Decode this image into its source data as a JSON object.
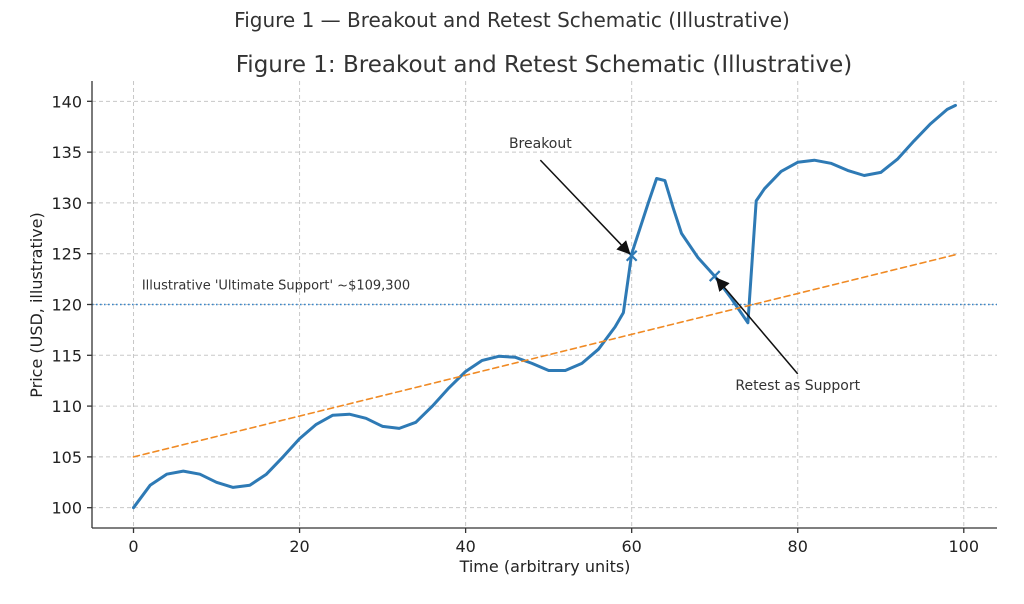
{
  "figure_title": "Figure 1 — Breakout and Retest Schematic (Illustrative)",
  "chart_data": {
    "type": "line",
    "title": "Figure 1: Breakout and Retest Schematic (Illustrative)",
    "xlabel": "Time (arbitrary units)",
    "ylabel": "Price (USD, illustrative)",
    "xlim": [
      -5,
      104
    ],
    "ylim": [
      98,
      142
    ],
    "xticks": [
      0,
      20,
      40,
      60,
      80,
      100
    ],
    "yticks": [
      100,
      105,
      110,
      115,
      120,
      125,
      130,
      135,
      140
    ],
    "grid": true,
    "colors": {
      "price": "#2e7ab5",
      "trend": "#f08a24",
      "support": "#3a86c8"
    },
    "series": [
      {
        "style": "solid",
        "x": [
          0,
          2,
          4,
          6,
          8,
          10,
          12,
          14,
          16,
          18,
          20,
          22,
          24,
          26,
          28,
          30,
          32,
          34,
          36,
          38,
          40,
          42,
          44,
          46,
          48,
          50,
          52,
          54,
          56,
          58,
          59,
          60,
          61,
          62,
          63,
          64,
          65,
          66,
          68,
          70,
          72,
          74,
          75,
          76,
          78,
          80,
          82,
          84,
          86,
          88,
          90,
          92,
          94,
          96,
          98,
          99
        ],
        "y": [
          100.0,
          102.2,
          103.3,
          103.6,
          103.3,
          102.5,
          102.0,
          102.2,
          103.3,
          105.0,
          106.8,
          108.2,
          109.1,
          109.2,
          108.8,
          108.0,
          107.8,
          108.4,
          110.0,
          111.8,
          113.4,
          114.5,
          114.9,
          114.8,
          114.2,
          113.5,
          113.5,
          114.2,
          115.6,
          117.8,
          119.2,
          125.0,
          127.5,
          130.0,
          132.4,
          132.2,
          129.5,
          127.0,
          124.6,
          122.8,
          120.6,
          118.2,
          130.2,
          131.4,
          133.1,
          134.0,
          134.2,
          133.9,
          133.2,
          132.7,
          133.0,
          134.3,
          136.1,
          137.8,
          139.2,
          139.6
        ]
      },
      {
        "style": "dashed",
        "x": [
          0,
          99
        ],
        "y": [
          105.0,
          124.9
        ]
      }
    ],
    "support_level": 120,
    "support_label": "Illustrative 'Ultimate Support' ~$109,300",
    "markers": [
      {
        "x": 60,
        "y": 124.8,
        "symbol": "x"
      },
      {
        "x": 70,
        "y": 122.8,
        "symbol": "x"
      }
    ],
    "annotations": [
      {
        "text": "Breakout",
        "text_x": 49,
        "text_y": 135,
        "target_x": 60,
        "target_y": 124.8
      },
      {
        "text": "Retest as Support",
        "text_x": 80,
        "text_y": 111.2,
        "target_x": 70,
        "target_y": 122.8
      }
    ]
  }
}
